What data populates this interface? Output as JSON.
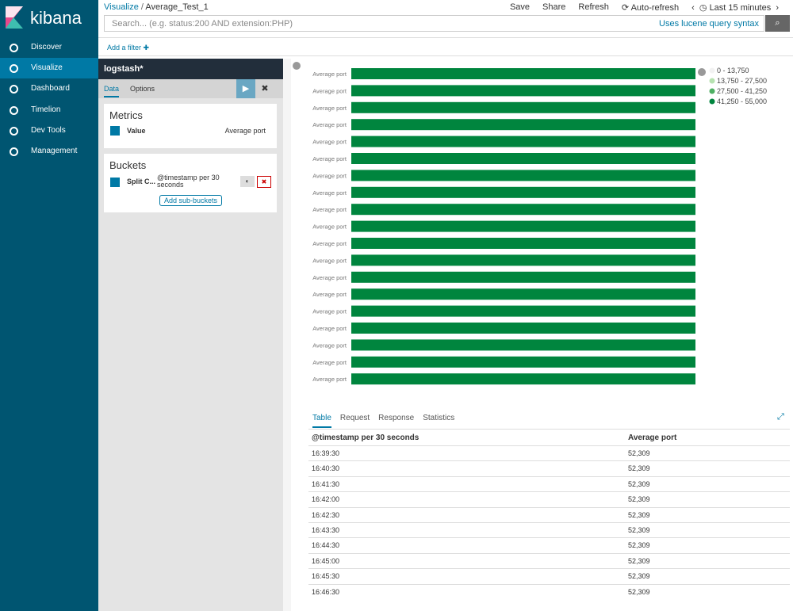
{
  "sidebar": {
    "logo": "kibana",
    "nav": [
      "Discover",
      "Visualize",
      "Dashboard",
      "Timelion",
      "Dev Tools",
      "Management"
    ],
    "active": 1
  },
  "topbar": {
    "breadcrumb": [
      "Visualize",
      "Average_Test_1"
    ],
    "actions": [
      "Save",
      "Share",
      "Refresh",
      "Auto-refresh",
      "Last 15 minutes"
    ],
    "search_placeholder": "Search... (e.g. status:200 AND extension:PHP)",
    "syntax_link": "Uses lucene query syntax",
    "add_filter": "Add a filter"
  },
  "editor": {
    "index": "logstash*",
    "tabs": [
      "Data",
      "Options"
    ],
    "metrics_title": "Metrics",
    "metric_name": "Value",
    "metric_desc": "Average port",
    "buckets_title": "Buckets",
    "bucket_name": "Split C...",
    "bucket_desc": "@timestamp per 30 seconds",
    "add_sub_buckets": "Add sub-buckets"
  },
  "chart": {
    "bar_color": "#00853e",
    "bars": [
      {
        "label": "Average port",
        "value": 52309
      },
      {
        "label": "Average port",
        "value": 52309
      },
      {
        "label": "Average port",
        "value": 52309
      },
      {
        "label": "Average port",
        "value": 52309
      },
      {
        "label": "Average port",
        "value": 52309
      },
      {
        "label": "Average port",
        "value": 52309
      },
      {
        "label": "Average port",
        "value": 52309
      },
      {
        "label": "Average port",
        "value": 52309
      },
      {
        "label": "Average port",
        "value": 52309
      },
      {
        "label": "Average port",
        "value": 52309
      },
      {
        "label": "Average port",
        "value": 52309
      },
      {
        "label": "Average port",
        "value": 52309
      },
      {
        "label": "Average port",
        "value": 52309
      },
      {
        "label": "Average port",
        "value": 52309
      },
      {
        "label": "Average port",
        "value": 52309
      },
      {
        "label": "Average port",
        "value": 52309
      },
      {
        "label": "Average port",
        "value": 52309
      },
      {
        "label": "Average port",
        "value": 52309
      },
      {
        "label": "Average port",
        "value": 52309
      }
    ],
    "legend": [
      {
        "label": "0 - 13,750",
        "color": "#f2f2f2"
      },
      {
        "label": "13,750 - 27,500",
        "color": "#b7e2b1"
      },
      {
        "label": "27,500 - 41,250",
        "color": "#4daf62"
      },
      {
        "label": "41,250 - 55,000",
        "color": "#00853e"
      }
    ]
  },
  "table": {
    "tabs": [
      "Table",
      "Request",
      "Response",
      "Statistics"
    ],
    "active_tab": 0,
    "headers": [
      "@timestamp per 30 seconds",
      "Average port"
    ],
    "rows": [
      [
        "16:39:30",
        "52,309"
      ],
      [
        "16:40:30",
        "52,309"
      ],
      [
        "16:41:30",
        "52,309"
      ],
      [
        "16:42:00",
        "52,309"
      ],
      [
        "16:42:30",
        "52,309"
      ],
      [
        "16:43:30",
        "52,309"
      ],
      [
        "16:44:30",
        "52,309"
      ],
      [
        "16:45:00",
        "52,309"
      ],
      [
        "16:45:30",
        "52,309"
      ],
      [
        "16:46:30",
        "52,309"
      ]
    ]
  }
}
